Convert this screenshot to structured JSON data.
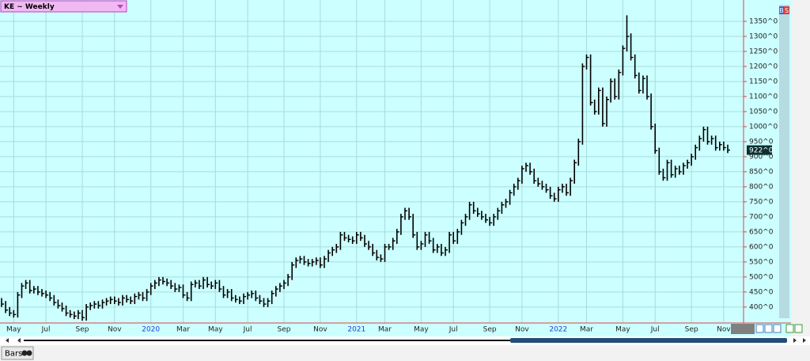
{
  "chart_data": {
    "type": "hlc",
    "title": "KE ~ Weekly",
    "categories": [
      null,
      null,
      null,
      "May",
      null,
      null,
      null,
      null,
      null,
      null,
      null,
      "Jul",
      null,
      null,
      null,
      null,
      null,
      null,
      null,
      null,
      "Sep",
      null,
      null,
      null,
      null,
      null,
      null,
      null,
      "Nov",
      null,
      null,
      null,
      null,
      null,
      null,
      null,
      null,
      "2020",
      null,
      null,
      null,
      null,
      null,
      null,
      null,
      "Mar",
      null,
      null,
      null,
      null,
      null,
      null,
      null,
      "May",
      null,
      null,
      null,
      null,
      null,
      null,
      null,
      "Jul",
      null,
      null,
      null,
      null,
      null,
      null,
      null,
      null,
      "Sep",
      null,
      null,
      null,
      null,
      null,
      null,
      null,
      null,
      "Nov",
      null,
      null,
      null,
      null,
      null,
      null,
      null,
      null,
      "2021",
      null,
      null,
      null,
      null,
      null,
      null,
      "Mar",
      null,
      null,
      null,
      null,
      null,
      null,
      null,
      null,
      "May",
      null,
      null,
      null,
      null,
      null,
      null,
      null,
      "Jul",
      null,
      null,
      null,
      null,
      null,
      null,
      null,
      null,
      "Sep",
      null,
      null,
      null,
      null,
      null,
      null,
      null,
      "Nov",
      null,
      null,
      null,
      null,
      null,
      null,
      null,
      null,
      "2022",
      null,
      null,
      null,
      null,
      null,
      null,
      "Mar",
      null,
      null,
      null,
      null,
      null,
      null,
      null,
      null,
      "May",
      null,
      null,
      null,
      null,
      null,
      null,
      null,
      "Jul",
      null,
      null,
      null,
      null,
      null,
      null,
      null,
      null,
      "Sep",
      null,
      null,
      null,
      null,
      null,
      null,
      null,
      "Nov",
      null
    ],
    "series": [
      {
        "color": "#000000",
        "high": [
          430,
          420,
          400,
          390,
          450,
          480,
          490,
          490,
          470,
          470,
          460,
          455,
          450,
          440,
          425,
          415,
          405,
          390,
          385,
          390,
          390,
          410,
          415,
          420,
          420,
          425,
          430,
          435,
          435,
          430,
          440,
          440,
          435,
          445,
          450,
          450,
          460,
          480,
          490,
          500,
          500,
          495,
          490,
          480,
          475,
          475,
          450,
          485,
          490,
          490,
          500,
          500,
          485,
          490,
          490,
          470,
          460,
          460,
          440,
          435,
          445,
          450,
          455,
          455,
          440,
          430,
          430,
          455,
          470,
          480,
          490,
          510,
          550,
          565,
          570,
          570,
          560,
          560,
          565,
          565,
          570,
          590,
          600,
          610,
          650,
          650,
          640,
          635,
          650,
          650,
          640,
          620,
          610,
          590,
          575,
          610,
          610,
          630,
          660,
          710,
          730,
          730,
          710,
          650,
          620,
          650,
          650,
          630,
          610,
          610,
          600,
          650,
          650,
          660,
          690,
          710,
          750,
          750,
          730,
          720,
          710,
          700,
          710,
          730,
          750,
          760,
          790,
          810,
          830,
          870,
          880,
          880,
          860,
          830,
          820,
          810,
          800,
          780,
          800,
          810,
          810,
          830,
          890,
          960,
          1210,
          1240,
          1240,
          1090,
          1130,
          1130,
          1100,
          1160,
          1160,
          1190,
          1270,
          1370,
          1310,
          1240,
          1180,
          1170,
          1170,
          1110,
          1010,
          930,
          860,
          890,
          890,
          870,
          870,
          880,
          890,
          910,
          940,
          970,
          1000,
          1000,
          970,
          970,
          950,
          950,
          940
        ],
        "low": [
          400,
          380,
          370,
          365,
          365,
          430,
          460,
          445,
          445,
          440,
          435,
          430,
          420,
          405,
          395,
          385,
          370,
          365,
          360,
          360,
          355,
          355,
          390,
          395,
          395,
          395,
          405,
          410,
          410,
          405,
          405,
          415,
          410,
          410,
          425,
          420,
          420,
          440,
          460,
          470,
          475,
          470,
          460,
          450,
          450,
          430,
          420,
          420,
          465,
          460,
          460,
          465,
          460,
          460,
          450,
          430,
          430,
          420,
          415,
          410,
          410,
          425,
          430,
          420,
          410,
          400,
          400,
          410,
          435,
          450,
          460,
          470,
          490,
          530,
          545,
          540,
          535,
          535,
          540,
          530,
          530,
          550,
          570,
          580,
          590,
          620,
          615,
          610,
          610,
          620,
          600,
          590,
          570,
          555,
          550,
          550,
          590,
          590,
          610,
          640,
          690,
          690,
          630,
          590,
          590,
          600,
          610,
          580,
          580,
          570,
          570,
          580,
          610,
          610,
          640,
          670,
          690,
          710,
          700,
          690,
          680,
          670,
          670,
          690,
          710,
          730,
          740,
          770,
          790,
          810,
          850,
          840,
          810,
          800,
          790,
          780,
          760,
          750,
          750,
          780,
          770,
          770,
          810,
          870,
          940,
          1190,
          1070,
          1040,
          1040,
          1000,
          1000,
          1080,
          1090,
          1090,
          1170,
          1250,
          1220,
          1160,
          1110,
          1110,
          1090,
          990,
          910,
          840,
          820,
          820,
          830,
          830,
          840,
          840,
          860,
          870,
          890,
          920,
          950,
          940,
          940,
          920,
          920,
          920,
          912
        ],
        "close": [
          410,
          390,
          380,
          375,
          440,
          470,
          480,
          455,
          460,
          450,
          445,
          440,
          430,
          415,
          405,
          395,
          380,
          375,
          370,
          380,
          365,
          400,
          405,
          410,
          405,
          415,
          420,
          425,
          420,
          415,
          430,
          425,
          420,
          435,
          440,
          430,
          450,
          470,
          480,
          490,
          485,
          480,
          470,
          460,
          465,
          440,
          430,
          475,
          480,
          470,
          490,
          475,
          470,
          480,
          460,
          440,
          450,
          430,
          425,
          420,
          435,
          440,
          445,
          430,
          420,
          410,
          420,
          445,
          460,
          470,
          480,
          500,
          540,
          555,
          560,
          550,
          545,
          550,
          555,
          540,
          560,
          580,
          590,
          600,
          640,
          630,
          625,
          620,
          640,
          630,
          610,
          600,
          580,
          565,
          560,
          600,
          600,
          620,
          650,
          700,
          720,
          700,
          640,
          600,
          610,
          640,
          620,
          590,
          600,
          580,
          590,
          640,
          620,
          650,
          680,
          700,
          740,
          720,
          710,
          700,
          690,
          680,
          700,
          720,
          740,
          750,
          780,
          800,
          820,
          860,
          870,
          850,
          820,
          810,
          800,
          790,
          770,
          760,
          790,
          800,
          780,
          820,
          880,
          950,
          1200,
          1230,
          1080,
          1050,
          1120,
          1010,
          1090,
          1150,
          1100,
          1180,
          1260,
          1300,
          1230,
          1170,
          1120,
          1160,
          1100,
          1000,
          920,
          850,
          830,
          880,
          840,
          860,
          850,
          870,
          880,
          900,
          930,
          960,
          990,
          950,
          960,
          930,
          940,
          930,
          922
        ]
      }
    ],
    "last_label": {
      "value": 922,
      "label": "922^0"
    },
    "ylim": [
      347,
      1421
    ],
    "yticks": [
      {
        "value": 400,
        "label": "400^0"
      },
      {
        "value": 450,
        "label": "450^0"
      },
      {
        "value": 500,
        "label": "500^0"
      },
      {
        "value": 550,
        "label": "550^0"
      },
      {
        "value": 600,
        "label": "600^0"
      },
      {
        "value": 650,
        "label": "650^0"
      },
      {
        "value": 700,
        "label": "700^0"
      },
      {
        "value": 750,
        "label": "750^0"
      },
      {
        "value": 800,
        "label": "800^0"
      },
      {
        "value": 850,
        "label": "850^0"
      },
      {
        "value": 900,
        "label": "900^0"
      },
      {
        "value": 950,
        "label": "950^0"
      },
      {
        "value": 1000,
        "label": "1000^0"
      },
      {
        "value": 1050,
        "label": "1050^0"
      },
      {
        "value": 1100,
        "label": "1100^0"
      },
      {
        "value": 1150,
        "label": "1150^0"
      },
      {
        "value": 1200,
        "label": "1200^0"
      },
      {
        "value": 1250,
        "label": "1250^0"
      },
      {
        "value": 1300,
        "label": "1300^0"
      },
      {
        "value": 1350,
        "label": "1350^0"
      }
    ],
    "grid": true
  },
  "ui": {
    "badge_b": "B",
    "badge_s": "S",
    "tab": "Bars"
  }
}
